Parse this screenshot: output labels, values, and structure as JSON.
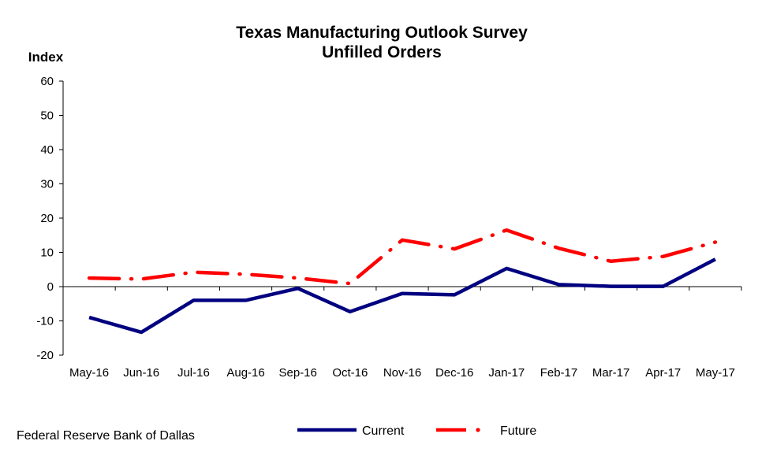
{
  "chart_data": {
    "type": "line",
    "title": "Texas Manufacturing Outlook Survey",
    "subtitle": "Unfilled Orders",
    "ylabel": "Index",
    "xlabel": "",
    "ylim": [
      -20,
      60
    ],
    "yticks": [
      "60",
      "50",
      "40",
      "30",
      "20",
      "10",
      "0",
      "-10",
      "-20"
    ],
    "ytick_values": [
      60,
      50,
      40,
      30,
      20,
      10,
      0,
      -10,
      -20
    ],
    "categories": [
      "May-16",
      "Jun-16",
      "Jul-16",
      "Aug-16",
      "Sep-16",
      "Oct-16",
      "Nov-16",
      "Dec-16",
      "Jan-17",
      "Feb-17",
      "Mar-17",
      "Apr-17",
      "May-17"
    ],
    "grid": false,
    "legend_position": "bottom",
    "series": [
      {
        "name": "Current",
        "color": "#000080",
        "style": "solid",
        "values": [
          -9.0,
          -13.3,
          -4.0,
          -4.0,
          -0.5,
          -7.3,
          -2.0,
          -2.4,
          5.3,
          0.6,
          0.1,
          0.1,
          8.0
        ]
      },
      {
        "name": "Future",
        "color": "#FF0000",
        "style": "dash-dot",
        "values": [
          2.5,
          2.2,
          4.2,
          3.6,
          2.5,
          0.9,
          13.6,
          11.0,
          16.5,
          11.2,
          7.4,
          8.8,
          13.0
        ]
      }
    ]
  },
  "footer": {
    "source": "Federal Reserve Bank of Dallas"
  }
}
